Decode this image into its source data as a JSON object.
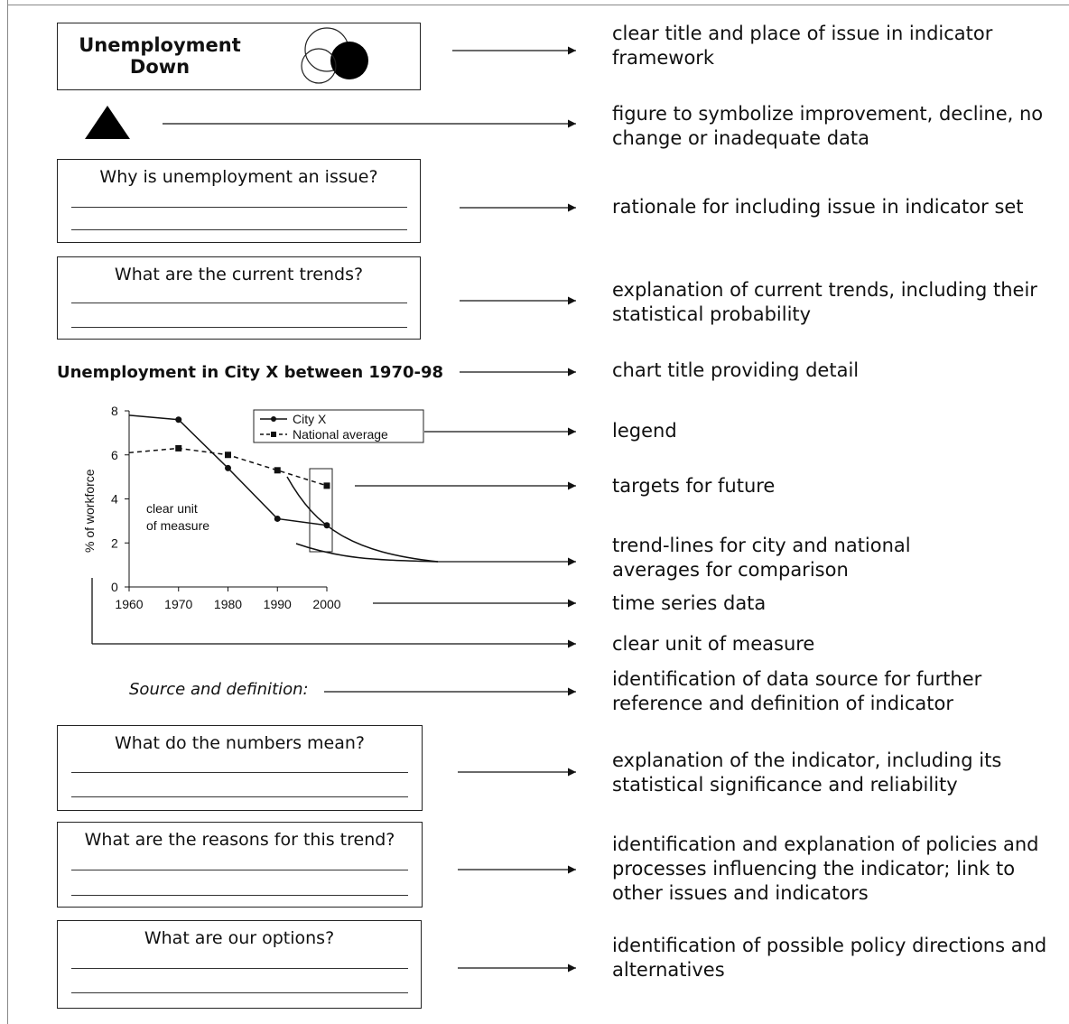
{
  "header": {
    "title_line1": "Unemployment",
    "title_line2": "Down"
  },
  "boxes": [
    {
      "question": "Why is unemployment an issue?"
    },
    {
      "question": "What are the current trends?"
    },
    {
      "question": "What do the numbers mean?"
    },
    {
      "question": "What are the reasons for this trend?"
    },
    {
      "question": "What are our options?"
    }
  ],
  "chart": {
    "title": "Unemployment in City X between 1970-98",
    "unit_note": [
      "clear unit",
      "of measure"
    ]
  },
  "source_label": "Source and definition:",
  "notes": [
    [
      "clear title and place of issue in indicator",
      "framework"
    ],
    [
      "figure to symbolize improvement, decline, no",
      "change or inadequate data"
    ],
    [
      "rationale for including issue in indicator set"
    ],
    [
      "explanation of current trends, including their",
      "statistical probability"
    ],
    [
      "chart title providing detail"
    ],
    [
      "legend"
    ],
    [
      "targets for future"
    ],
    [
      "trend-lines for city and national",
      "averages for comparison"
    ],
    [
      "time series data"
    ],
    [
      "clear unit of measure"
    ],
    [
      "identification of data source for further",
      "reference and definition of indicator"
    ],
    [
      "explanation of the indicator, including its",
      "statistical significance and reliability"
    ],
    [
      "identification and explanation of policies and",
      "processes influencing the indicator; link to",
      "other issues and indicators"
    ],
    [
      "identification of possible policy directions and",
      "alternatives"
    ]
  ],
  "chart_data": {
    "type": "line",
    "title": "",
    "xlabel": "",
    "ylabel": "% of workforce",
    "x_ticks": [
      1960,
      1970,
      1980,
      1990,
      2000
    ],
    "y_ticks": [
      0,
      2,
      4,
      6,
      8
    ],
    "xlim": [
      1960,
      2000
    ],
    "ylim": [
      0,
      8
    ],
    "legend_position": "top-center",
    "series": [
      {
        "name": "City X",
        "style": "solid-circle",
        "x": [
          1960,
          1970,
          1980,
          1990,
          2000
        ],
        "y": [
          7.8,
          7.6,
          5.4,
          3.1,
          2.8
        ]
      },
      {
        "name": "National average",
        "style": "dashed-square",
        "x": [
          1960,
          1970,
          1980,
          1990,
          2000
        ],
        "y": [
          6.1,
          6.3,
          6.0,
          5.3,
          4.6
        ]
      }
    ]
  },
  "icons": {
    "framework": "venn-circles-icon",
    "status": "triangle-up-icon"
  }
}
